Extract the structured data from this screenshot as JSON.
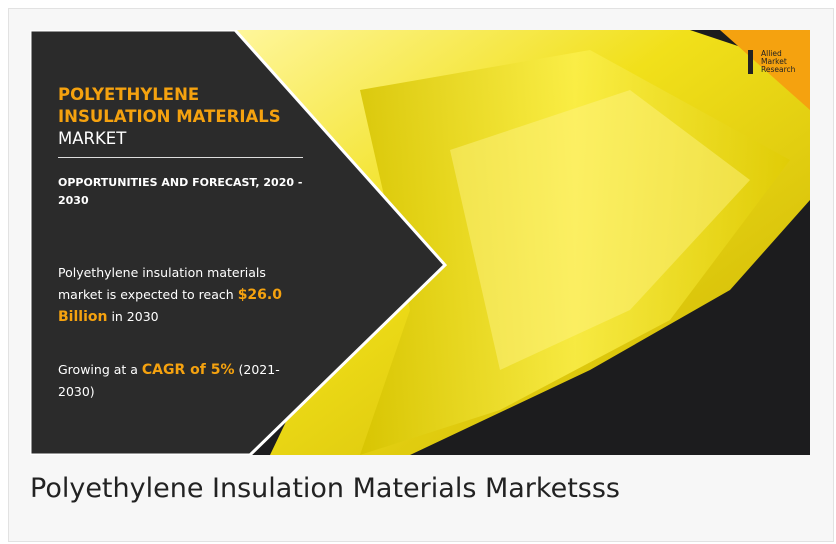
{
  "infographic": {
    "title_bold": "POLYETHYLENE INSULATION MATERIALS",
    "title_rest": "MARKET",
    "subtitle": "OPPORTUNITIES AND FORECAST, 2020 - 2030",
    "stat1": {
      "before": "Polyethylene insulation materials market is expected to reach",
      "highlight": "$26.0 Billion",
      "after": "in 2030"
    },
    "stat2": {
      "before": "Growing at a",
      "highlight": "CAGR of 5%",
      "after": "(2021-2030)"
    },
    "logo": [
      "Allied",
      "Market",
      "Research"
    ]
  },
  "caption": "Polyethylene Insulation Materials Marketsss"
}
